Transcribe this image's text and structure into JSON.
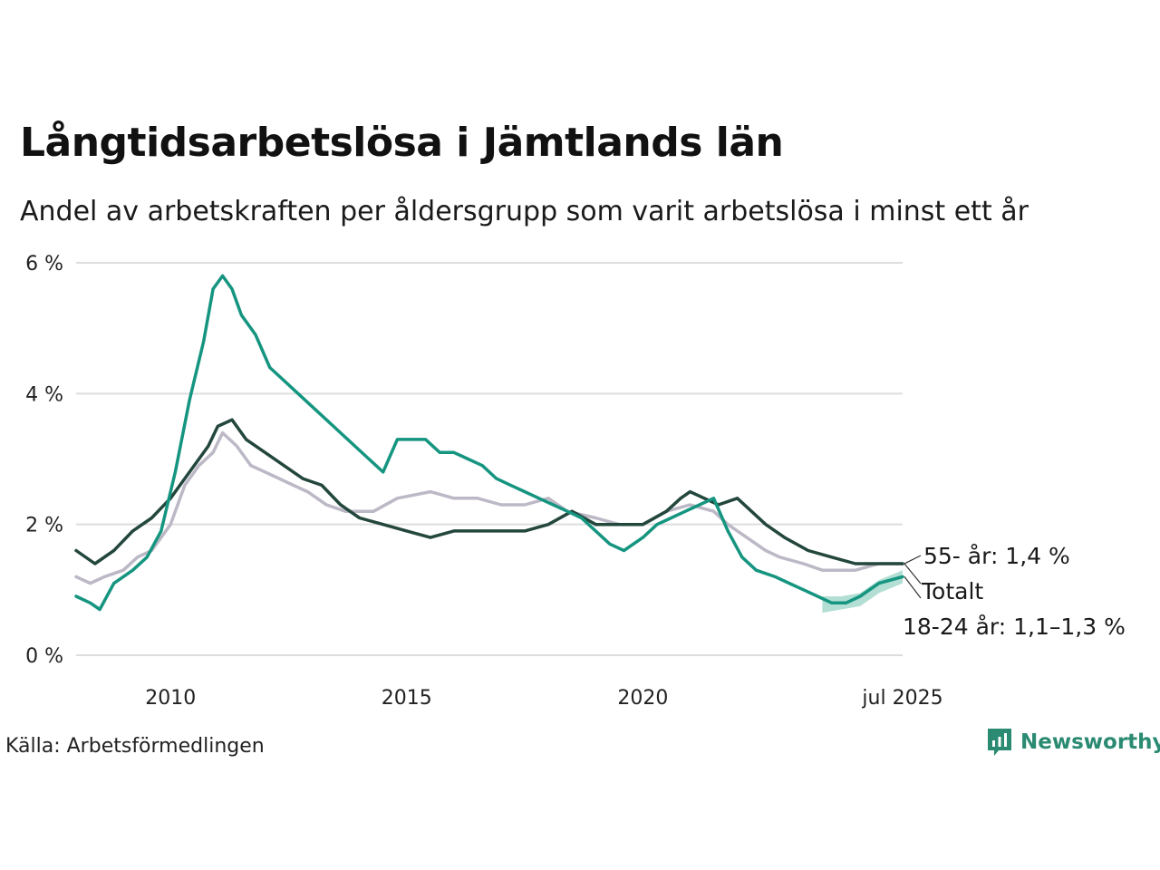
{
  "title": "Långtidsarbetslösa i Jämtlands län",
  "subtitle": "Andel av arbetskraften per åldersgrupp som varit arbetslösa i minst ett år",
  "source": "Källa: Arbetsförmedlingen",
  "brand": "Newsworthy",
  "colors": {
    "young": "#159580",
    "total": "#23473d",
    "old": "#bdb8c6",
    "grid": "#dddddd",
    "band": "#7fc8b7",
    "brand": "#2b8a72"
  },
  "chart_data": {
    "type": "line",
    "ylim": [
      0,
      6
    ],
    "xlim": [
      2008.0,
      2025.5
    ],
    "y_ticks": [
      0,
      2,
      4,
      6
    ],
    "y_tick_labels": [
      "0 %",
      "2 %",
      "4 %",
      "6 %"
    ],
    "x_ticks": [
      2010,
      2015,
      2020,
      2025.5
    ],
    "x_tick_labels": [
      "2010",
      "2015",
      "2020",
      "jul 2025"
    ],
    "grid": true,
    "end_labels": [
      "55- år: 1,4 %",
      "Totalt",
      "18-24 år: 1,1–1,3 %"
    ],
    "series": [
      {
        "key": "old",
        "name": "55- år",
        "x": [
          2008.0,
          2008.3,
          2008.6,
          2009.0,
          2009.3,
          2009.6,
          2010.0,
          2010.3,
          2010.6,
          2010.9,
          2011.1,
          2011.4,
          2011.7,
          2012.0,
          2012.3,
          2012.6,
          2012.9,
          2013.3,
          2013.7,
          2014.3,
          2014.8,
          2015.5,
          2016.0,
          2016.5,
          2017.0,
          2017.5,
          2018.0,
          2018.4,
          2019.0,
          2019.5,
          2020.0,
          2020.5,
          2021.0,
          2021.5,
          2021.8,
          2022.2,
          2022.6,
          2022.9,
          2023.4,
          2023.8,
          2024.5,
          2025.0,
          2025.5
        ],
        "values": [
          1.2,
          1.1,
          1.2,
          1.3,
          1.5,
          1.6,
          2.0,
          2.6,
          2.9,
          3.1,
          3.4,
          3.2,
          2.9,
          2.8,
          2.7,
          2.6,
          2.5,
          2.3,
          2.2,
          2.2,
          2.4,
          2.5,
          2.4,
          2.4,
          2.3,
          2.3,
          2.4,
          2.2,
          2.1,
          2.0,
          2.0,
          2.2,
          2.3,
          2.2,
          2.0,
          1.8,
          1.6,
          1.5,
          1.4,
          1.3,
          1.3,
          1.4,
          1.4
        ]
      },
      {
        "key": "total",
        "name": "Totalt",
        "x": [
          2008.0,
          2008.4,
          2008.8,
          2009.2,
          2009.6,
          2010.0,
          2010.4,
          2010.8,
          2011.0,
          2011.3,
          2011.6,
          2012.0,
          2012.4,
          2012.8,
          2013.2,
          2013.6,
          2014.0,
          2014.5,
          2015.0,
          2015.5,
          2016.0,
          2016.5,
          2017.0,
          2017.5,
          2018.0,
          2018.5,
          2019.0,
          2019.5,
          2020.0,
          2020.5,
          2020.8,
          2021.0,
          2021.3,
          2021.6,
          2022.0,
          2022.3,
          2022.6,
          2023.0,
          2023.5,
          2024.0,
          2024.5,
          2025.0,
          2025.5
        ],
        "values": [
          1.6,
          1.4,
          1.6,
          1.9,
          2.1,
          2.4,
          2.8,
          3.2,
          3.5,
          3.6,
          3.3,
          3.1,
          2.9,
          2.7,
          2.6,
          2.3,
          2.1,
          2.0,
          1.9,
          1.8,
          1.9,
          1.9,
          1.9,
          1.9,
          2.0,
          2.2,
          2.0,
          2.0,
          2.0,
          2.2,
          2.4,
          2.5,
          2.4,
          2.3,
          2.4,
          2.2,
          2.0,
          1.8,
          1.6,
          1.5,
          1.4,
          1.4,
          1.4
        ]
      },
      {
        "key": "young",
        "name": "18-24 år",
        "x": [
          2008.0,
          2008.3,
          2008.5,
          2008.8,
          2009.2,
          2009.5,
          2009.8,
          2010.1,
          2010.4,
          2010.7,
          2010.9,
          2011.1,
          2011.3,
          2011.5,
          2011.8,
          2012.1,
          2012.4,
          2012.7,
          2013.0,
          2013.3,
          2013.6,
          2013.9,
          2014.2,
          2014.5,
          2014.8,
          2015.1,
          2015.4,
          2015.7,
          2016.0,
          2016.3,
          2016.6,
          2016.9,
          2017.2,
          2017.5,
          2017.8,
          2018.1,
          2018.4,
          2018.7,
          2019.0,
          2019.3,
          2019.6,
          2020.0,
          2020.3,
          2020.6,
          2020.9,
          2021.2,
          2021.5,
          2021.8,
          2022.1,
          2022.4,
          2022.8,
          2023.1,
          2023.4,
          2023.7,
          2024.0,
          2024.3,
          2024.6,
          2025.0,
          2025.5
        ],
        "values": [
          0.9,
          0.8,
          0.7,
          1.1,
          1.3,
          1.5,
          1.9,
          2.8,
          3.9,
          4.8,
          5.6,
          5.8,
          5.6,
          5.2,
          4.9,
          4.4,
          4.2,
          4.0,
          3.8,
          3.6,
          3.4,
          3.2,
          3.0,
          2.8,
          3.3,
          3.3,
          3.3,
          3.1,
          3.1,
          3.0,
          2.9,
          2.7,
          2.6,
          2.5,
          2.4,
          2.3,
          2.2,
          2.1,
          1.9,
          1.7,
          1.6,
          1.8,
          2.0,
          2.1,
          2.2,
          2.3,
          2.4,
          1.9,
          1.5,
          1.3,
          1.2,
          1.1,
          1.0,
          0.9,
          0.8,
          0.8,
          0.9,
          1.1,
          1.2
        ]
      }
    ],
    "ranges": [
      {
        "key": "young",
        "x": [
          2023.8,
          2024.2,
          2024.6,
          2025.0,
          2025.5
        ],
        "low": [
          0.65,
          0.7,
          0.75,
          0.95,
          1.1
        ],
        "high": [
          0.9,
          0.9,
          0.95,
          1.15,
          1.3
        ]
      }
    ]
  }
}
